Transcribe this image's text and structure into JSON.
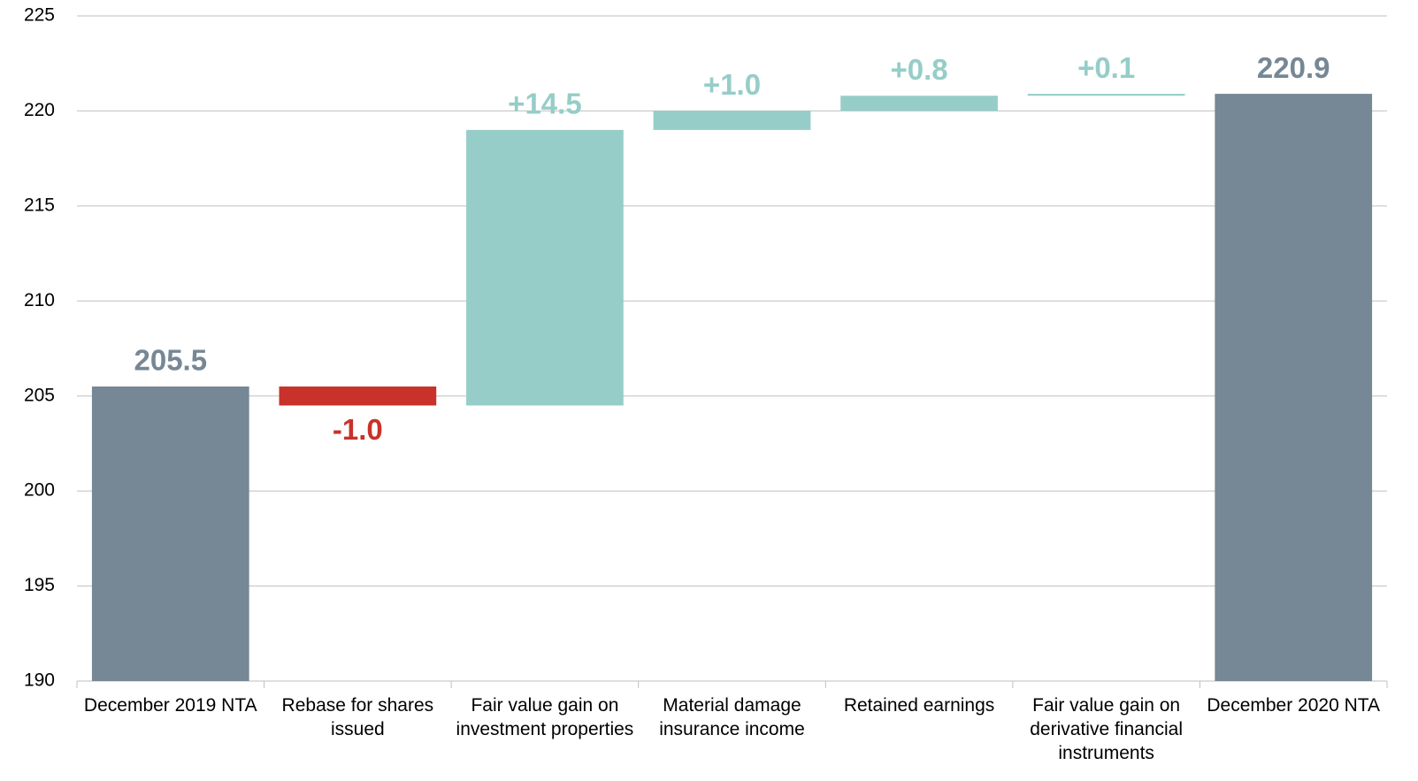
{
  "chart_data": {
    "type": "waterfall",
    "categories": [
      "December 2019 NTA",
      "Rebase for shares issued",
      "Fair value gain on investment properties",
      "Material damage insurance income",
      "Retained earnings",
      "Fair value gain on derivative financial instruments",
      "December 2020 NTA"
    ],
    "values": [
      205.5,
      -1.0,
      14.5,
      1.0,
      0.8,
      0.1,
      220.9
    ],
    "value_labels": [
      "205.5",
      "-1.0",
      "+14.5",
      "+1.0",
      "+0.8",
      "+0.1",
      "220.9"
    ],
    "kinds": [
      "total",
      "delta",
      "delta",
      "delta",
      "delta",
      "delta",
      "total"
    ],
    "colors": {
      "total": "#768795",
      "increase": "#96cdc8",
      "decrease": "#c8322a"
    },
    "ylim": [
      190,
      225
    ],
    "yticks": [
      190,
      195,
      200,
      205,
      210,
      215,
      220,
      225
    ],
    "grid": true
  }
}
